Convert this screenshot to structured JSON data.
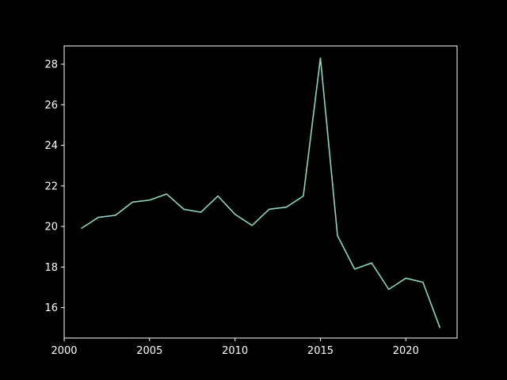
{
  "chart_data": {
    "type": "line",
    "title": "",
    "xlabel": "",
    "ylabel": "",
    "xlim": [
      2000,
      2023
    ],
    "ylim": [
      14.5,
      28.9
    ],
    "xticks": [
      2000,
      2005,
      2010,
      2015,
      2020
    ],
    "yticks": [
      16,
      18,
      20,
      22,
      24,
      26,
      28
    ],
    "grid": false,
    "legend": "none",
    "colors": {
      "background": "#000000",
      "axes": "#ffffff",
      "line": "#8dd3c7"
    },
    "series": [
      {
        "x": [
          2001,
          2002,
          2003,
          2004,
          2005,
          2006,
          2007,
          2008,
          2009,
          2010,
          2011,
          2012,
          2013,
          2014,
          2015,
          2016,
          2017,
          2018,
          2019,
          2020,
          2021,
          2022
        ],
        "values": [
          19.9,
          20.45,
          20.55,
          21.2,
          21.3,
          21.6,
          20.85,
          20.7,
          21.5,
          20.6,
          20.05,
          20.85,
          20.95,
          21.5,
          28.3,
          19.55,
          17.9,
          18.2,
          16.9,
          17.45,
          17.25,
          15.0
        ]
      }
    ]
  }
}
